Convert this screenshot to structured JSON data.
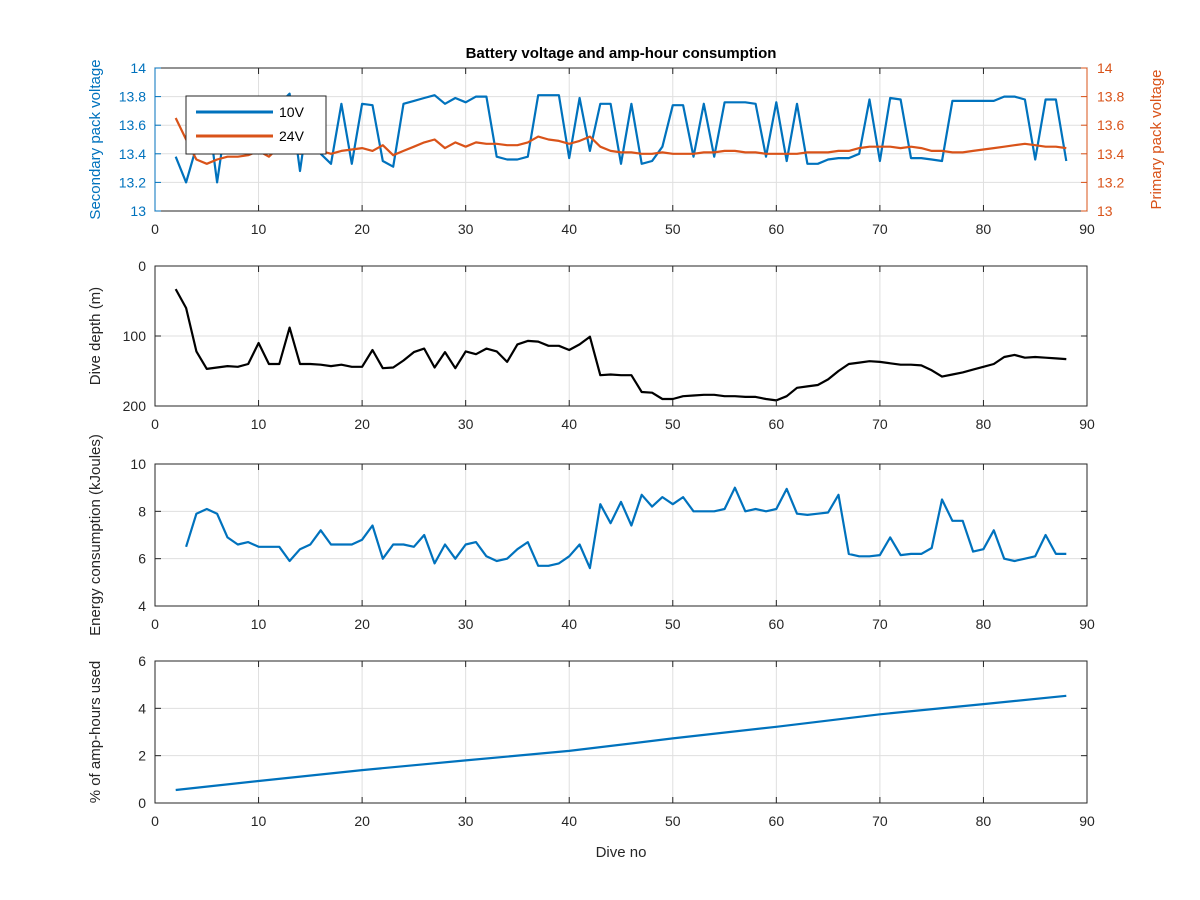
{
  "colors": {
    "blue": "#0072bd",
    "orange": "#d95319",
    "black": "#000000",
    "grid": "#dfdfdf",
    "axis": "#262626"
  },
  "chart_data": [
    {
      "type": "line",
      "title": "Battery voltage and amp-hour consumption",
      "xlabel": "",
      "ylabel": "Secondary pack voltage",
      "ylabel_right": "Primary pack voltage",
      "xlim": [
        0,
        90
      ],
      "ylim": [
        13,
        14
      ],
      "ylim_right": [
        13,
        14
      ],
      "xticks": [
        0,
        10,
        20,
        30,
        40,
        50,
        60,
        70,
        80,
        90
      ],
      "yticks": [
        13,
        13.2,
        13.4,
        13.6,
        13.8,
        14
      ],
      "yticks_right": [
        13,
        13.2,
        13.4,
        13.6,
        13.8,
        14
      ],
      "grid": true,
      "legend": "top-left",
      "series": [
        {
          "name": "10V",
          "axis": "left",
          "color": "#0072bd",
          "x": [
            2,
            3,
            4,
            5,
            6,
            7,
            8,
            9,
            10,
            11,
            12,
            13,
            14,
            15,
            16,
            17,
            18,
            19,
            20,
            21,
            22,
            23,
            24,
            25,
            26,
            27,
            28,
            29,
            30,
            31,
            32,
            33,
            34,
            35,
            36,
            37,
            38,
            39,
            40,
            41,
            42,
            43,
            44,
            45,
            46,
            47,
            48,
            49,
            50,
            51,
            52,
            53,
            54,
            55,
            56,
            57,
            58,
            59,
            60,
            61,
            62,
            63,
            64,
            65,
            66,
            67,
            68,
            69,
            70,
            71,
            72,
            73,
            74,
            75,
            76,
            77,
            78,
            79,
            80,
            81,
            82,
            83,
            84,
            85,
            86,
            87,
            88
          ],
          "values": [
            13.38,
            13.2,
            13.45,
            13.75,
            13.2,
            13.7,
            13.75,
            13.75,
            13.8,
            13.75,
            13.75,
            13.82,
            13.28,
            13.78,
            13.4,
            13.33,
            13.75,
            13.33,
            13.75,
            13.74,
            13.35,
            13.31,
            13.75,
            13.77,
            13.79,
            13.81,
            13.75,
            13.79,
            13.76,
            13.8,
            13.8,
            13.38,
            13.36,
            13.36,
            13.38,
            13.81,
            13.81,
            13.81,
            13.37,
            13.79,
            13.42,
            13.75,
            13.75,
            13.33,
            13.75,
            13.33,
            13.35,
            13.45,
            13.74,
            13.74,
            13.38,
            13.75,
            13.38,
            13.76,
            13.76,
            13.76,
            13.75,
            13.38,
            13.76,
            13.35,
            13.75,
            13.33,
            13.33,
            13.36,
            13.37,
            13.37,
            13.4,
            13.78,
            13.35,
            13.79,
            13.78,
            13.37,
            13.37,
            13.36,
            13.35,
            13.77,
            13.77,
            13.77,
            13.77,
            13.77,
            13.8,
            13.8,
            13.78,
            13.36,
            13.78,
            13.78,
            13.35
          ]
        },
        {
          "name": "24V",
          "axis": "right",
          "color": "#d95319",
          "x": [
            2,
            3,
            4,
            5,
            6,
            7,
            8,
            9,
            10,
            11,
            12,
            13,
            14,
            15,
            16,
            17,
            18,
            19,
            20,
            21,
            22,
            23,
            24,
            25,
            26,
            27,
            28,
            29,
            30,
            31,
            32,
            33,
            34,
            35,
            36,
            37,
            38,
            39,
            40,
            41,
            42,
            43,
            44,
            45,
            46,
            47,
            48,
            49,
            50,
            51,
            52,
            53,
            54,
            55,
            56,
            57,
            58,
            59,
            60,
            61,
            62,
            63,
            64,
            65,
            66,
            67,
            68,
            69,
            70,
            71,
            72,
            73,
            74,
            75,
            76,
            77,
            78,
            79,
            80,
            81,
            82,
            83,
            84,
            85,
            86,
            87,
            88
          ],
          "values": [
            13.65,
            13.5,
            13.36,
            13.33,
            13.36,
            13.38,
            13.38,
            13.39,
            13.42,
            13.38,
            13.45,
            13.44,
            13.4,
            13.43,
            13.42,
            13.4,
            13.42,
            13.43,
            13.44,
            13.42,
            13.46,
            13.39,
            13.42,
            13.45,
            13.48,
            13.5,
            13.44,
            13.48,
            13.45,
            13.48,
            13.47,
            13.47,
            13.46,
            13.46,
            13.48,
            13.52,
            13.5,
            13.49,
            13.47,
            13.49,
            13.52,
            13.45,
            13.42,
            13.41,
            13.41,
            13.4,
            13.4,
            13.41,
            13.4,
            13.4,
            13.4,
            13.41,
            13.41,
            13.42,
            13.42,
            13.41,
            13.41,
            13.4,
            13.4,
            13.4,
            13.4,
            13.41,
            13.41,
            13.41,
            13.42,
            13.42,
            13.44,
            13.45,
            13.45,
            13.45,
            13.44,
            13.45,
            13.44,
            13.42,
            13.42,
            13.41,
            13.41,
            13.42,
            13.43,
            13.44,
            13.45,
            13.46,
            13.47,
            13.46,
            13.45,
            13.45,
            13.44
          ]
        }
      ]
    },
    {
      "type": "line",
      "title": "",
      "xlabel": "",
      "ylabel": "Dive depth (m)",
      "xlim": [
        0,
        90
      ],
      "ylim": [
        0,
        200
      ],
      "y_reversed": true,
      "xticks": [
        0,
        10,
        20,
        30,
        40,
        50,
        60,
        70,
        80,
        90
      ],
      "yticks": [
        0,
        100,
        200
      ],
      "grid": true,
      "series": [
        {
          "color": "#000000",
          "x": [
            2,
            3,
            4,
            5,
            6,
            7,
            8,
            9,
            10,
            11,
            12,
            13,
            14,
            15,
            16,
            17,
            18,
            19,
            20,
            21,
            22,
            23,
            24,
            25,
            26,
            27,
            28,
            29,
            30,
            31,
            32,
            33,
            34,
            35,
            36,
            37,
            38,
            39,
            40,
            41,
            42,
            43,
            44,
            45,
            46,
            47,
            48,
            49,
            50,
            51,
            52,
            53,
            54,
            55,
            56,
            57,
            58,
            59,
            60,
            61,
            62,
            63,
            64,
            65,
            66,
            67,
            68,
            69,
            70,
            71,
            72,
            73,
            74,
            75,
            76,
            77,
            78,
            79,
            80,
            81,
            82,
            83,
            84,
            85,
            86,
            87,
            88
          ],
          "values": [
            33,
            60,
            122,
            147,
            145,
            143,
            144,
            140,
            110,
            140,
            140,
            88,
            140,
            140,
            141,
            143,
            141,
            144,
            144,
            120,
            146,
            145,
            135,
            123,
            118,
            145,
            123,
            146,
            122,
            126,
            118,
            122,
            137,
            112,
            107,
            108,
            114,
            114,
            120,
            112,
            101,
            156,
            155,
            156,
            156,
            180,
            181,
            190,
            190,
            186,
            185,
            184,
            184,
            186,
            186,
            187,
            187,
            190,
            192,
            186,
            174,
            172,
            170,
            162,
            150,
            140,
            138,
            136,
            137,
            139,
            141,
            141,
            142,
            149,
            158,
            155,
            152,
            148,
            144,
            140,
            130,
            127,
            131,
            130,
            131,
            132,
            133
          ]
        }
      ]
    },
    {
      "type": "line",
      "title": "",
      "xlabel": "",
      "ylabel": "Energy consumption (kJoules)",
      "xlim": [
        0,
        90
      ],
      "ylim": [
        4,
        10
      ],
      "xticks": [
        0,
        10,
        20,
        30,
        40,
        50,
        60,
        70,
        80,
        90
      ],
      "yticks": [
        4,
        6,
        8,
        10
      ],
      "grid": true,
      "series": [
        {
          "color": "#0072bd",
          "x": [
            3,
            4,
            5,
            6,
            7,
            8,
            9,
            10,
            11,
            12,
            13,
            14,
            15,
            16,
            17,
            18,
            19,
            20,
            21,
            22,
            23,
            24,
            25,
            26,
            27,
            28,
            29,
            30,
            31,
            32,
            33,
            34,
            35,
            36,
            37,
            38,
            39,
            40,
            41,
            42,
            43,
            44,
            45,
            46,
            47,
            48,
            49,
            50,
            51,
            52,
            53,
            54,
            55,
            56,
            57,
            58,
            59,
            60,
            61,
            62,
            63,
            64,
            65,
            66,
            67,
            68,
            69,
            70,
            71,
            72,
            73,
            74,
            75,
            76,
            77,
            78,
            79,
            80,
            81,
            82,
            83,
            84,
            85,
            86,
            87,
            88
          ],
          "values": [
            6.5,
            7.9,
            8.1,
            7.9,
            6.9,
            6.6,
            6.7,
            6.5,
            6.5,
            6.5,
            5.9,
            6.4,
            6.6,
            7.2,
            6.6,
            6.6,
            6.6,
            6.8,
            7.4,
            6.0,
            6.6,
            6.6,
            6.5,
            7.0,
            5.8,
            6.6,
            6.0,
            6.6,
            6.7,
            6.1,
            5.9,
            6.0,
            6.4,
            6.7,
            5.7,
            5.7,
            5.8,
            6.1,
            6.6,
            5.6,
            8.3,
            7.5,
            8.4,
            7.4,
            8.7,
            8.2,
            8.6,
            8.3,
            8.6,
            8.0,
            8.0,
            8.0,
            8.1,
            9.0,
            8.0,
            8.1,
            8.0,
            8.1,
            8.95,
            7.9,
            7.85,
            7.9,
            7.95,
            8.7,
            6.2,
            6.1,
            6.1,
            6.15,
            6.9,
            6.15,
            6.2,
            6.2,
            6.45,
            8.5,
            7.6,
            7.6,
            6.3,
            6.4,
            7.2,
            6.0,
            5.9,
            6.0,
            6.1,
            7.0,
            6.2,
            6.2
          ]
        }
      ]
    },
    {
      "type": "line",
      "title": "",
      "xlabel": "Dive no",
      "ylabel": "% of amp-hours used",
      "xlim": [
        0,
        90
      ],
      "ylim": [
        0,
        6
      ],
      "xticks": [
        0,
        10,
        20,
        30,
        40,
        50,
        60,
        70,
        80,
        90
      ],
      "yticks": [
        0,
        2,
        4,
        6
      ],
      "grid": true,
      "series": [
        {
          "color": "#0072bd",
          "x": [
            2,
            10,
            20,
            30,
            40,
            50,
            60,
            70,
            80,
            88
          ],
          "values": [
            0.55,
            0.93,
            1.39,
            1.8,
            2.2,
            2.73,
            3.22,
            3.75,
            4.18,
            4.53
          ]
        }
      ]
    }
  ]
}
